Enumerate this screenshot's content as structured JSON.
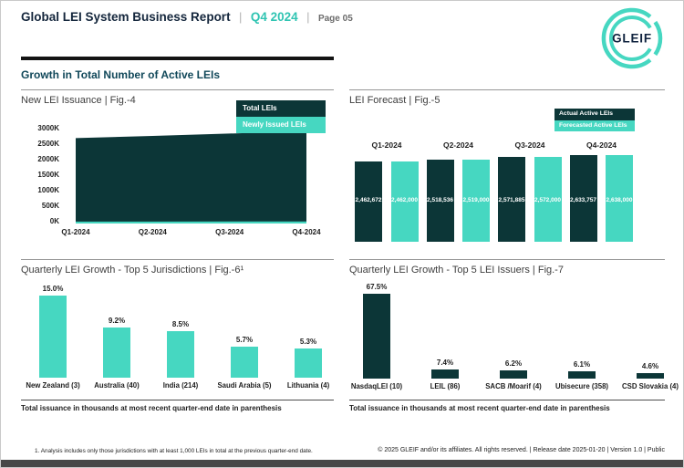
{
  "header": {
    "title": "Global LEI System Business Report",
    "separator": "|",
    "period": "Q4 2024",
    "page_label": "Page 05"
  },
  "logo": {
    "label": "GLEIF"
  },
  "section": {
    "title": "Growth in Total Number of Active LEIs"
  },
  "colors": {
    "dark_teal": "#0c3637",
    "teal": "#46d7c1",
    "header_navy": "#14263c",
    "accent_teal": "#2fc4b2",
    "section_title": "#11485a",
    "bottom_bar": "#474747"
  },
  "chart_data": [
    {
      "id": "fig4",
      "type": "area",
      "title": "New LEI Issuance | Fig.-4",
      "legend": [
        "Total LEIs",
        "Newly Issued LEIs"
      ],
      "legend_position": "top-right",
      "x": [
        "Q1-2024",
        "Q2-2024",
        "Q3-2024",
        "Q4-2024"
      ],
      "y_ticks": [
        "3000K",
        "2500K",
        "2000K",
        "1500K",
        "1000K",
        "500K",
        "0K"
      ],
      "ylim_thousands": [
        0,
        3000
      ],
      "series": [
        {
          "name": "Total LEIs",
          "values_thousands": [
            2700,
            2770,
            2845,
            2920
          ]
        },
        {
          "name": "Newly Issued LEIs",
          "values_thousands": [
            60,
            60,
            65,
            65
          ]
        }
      ]
    },
    {
      "id": "fig5",
      "type": "bar",
      "title": "LEI Forecast | Fig.-5",
      "legend": [
        "Actual Active LEIs",
        "Forecasted Active LEIs"
      ],
      "legend_position": "top-right",
      "categories": [
        "Q1-2024",
        "Q2-2024",
        "Q3-2024",
        "Q4-2024"
      ],
      "series": [
        {
          "name": "Actual Active LEIs",
          "values": [
            2462672,
            2518536,
            2571885,
            2633757
          ],
          "labels": [
            "2,462,672",
            "2,518,536",
            "2,571,885",
            "2,633,757"
          ]
        },
        {
          "name": "Forecasted Active LEIs",
          "values": [
            2462000,
            2519000,
            2572000,
            2638000
          ],
          "labels": [
            "2,462,000",
            "2,519,000",
            "2,572,000",
            "2,638,000"
          ]
        }
      ]
    },
    {
      "id": "fig6",
      "type": "bar",
      "title": "Quarterly LEI Growth - Top 5 Jurisdictions | Fig.-6¹",
      "categories": [
        "New Zealand (3)",
        "Australia (40)",
        "India (214)",
        "Saudi Arabia (5)",
        "Lithuania (4)"
      ],
      "values_percent": [
        15.0,
        9.2,
        8.5,
        5.7,
        5.3
      ],
      "labels": [
        "15.0%",
        "9.2%",
        "8.5%",
        "5.7%",
        "5.3%"
      ]
    },
    {
      "id": "fig7",
      "type": "bar",
      "title": "Quarterly LEI Growth - Top 5 LEI Issuers | Fig.-7",
      "categories": [
        "NasdaqLEI (10)",
        "LEIL (86)",
        "SACB /Moarif (4)",
        "Ubisecure (358)",
        "CSD Slovakia (4)"
      ],
      "values_percent": [
        67.5,
        7.4,
        6.2,
        6.1,
        4.6
      ],
      "labels": [
        "67.5%",
        "7.4%",
        "6.2%",
        "6.1%",
        "4.6%"
      ]
    }
  ],
  "footnotes": {
    "issuance_note": "Total issuance in thousands at most recent quarter-end date in parenthesis",
    "jurisdiction_footnote": "1. Analysis includes only those jurisdictions with at least 1,000 LEIs in total at the previous quarter-end date.",
    "copyright": "© 2025 GLEIF and/or its affiliates. All rights reserved.  |  Release date 2025-01-20  |  Version 1.0  |  Public"
  }
}
